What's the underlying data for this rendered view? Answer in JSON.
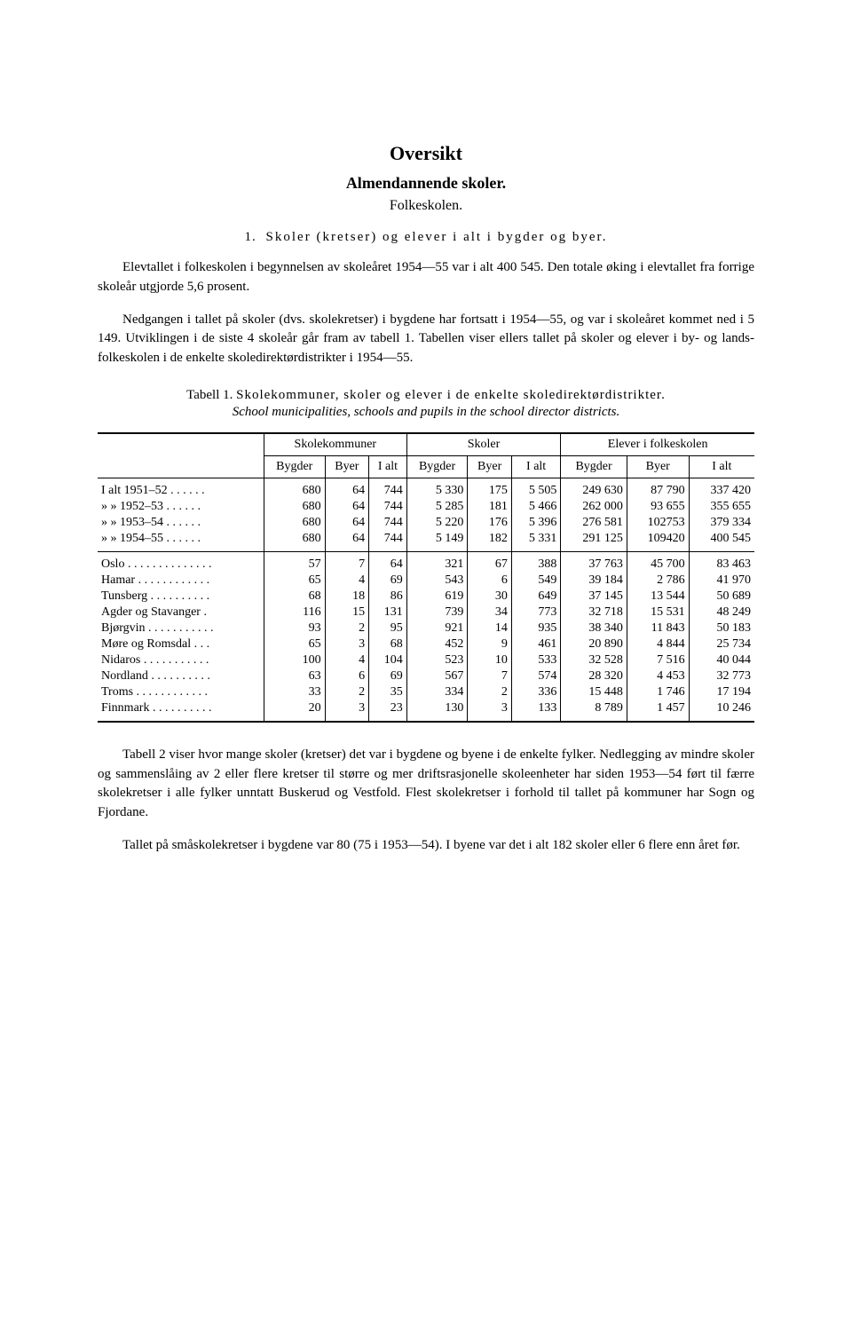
{
  "title": "Oversikt",
  "subtitle": "Almendannende skoler.",
  "subsubtitle": "Folkeskolen.",
  "section": {
    "number": "1.",
    "head": "Skoler (kretser) og elever i alt i bygder og byer."
  },
  "para1": "Elevtallet i folkeskolen i begynnelsen av skoleåret 1954—55 var i alt 400 545. Den totale øking i elevtallet fra forrige skoleår utgjorde 5,6 prosent.",
  "para2": "Nedgangen i tallet på skoler (dvs. skolekretser) i bygdene har fortsatt i 1954—55, og var i skoleåret kommet ned i 5 149. Utviklingen i de siste 4 skoleår går fram av tabell 1. Tabellen viser ellers tallet på skoler og elever i by- og lands-folkeskolen i de enkelte skoledirektørdistrikter i 1954—55.",
  "tabell": {
    "label_prefix": "Tabell 1.",
    "label_main": "Skolekommuner, skoler og elever i de enkelte skoledirektørdistrikter.",
    "label_sub": "School municipalities, schools and pupils in the school director districts."
  },
  "headers": {
    "group1": "Skolekommuner",
    "group2": "Skoler",
    "group3": "Elever i folkeskolen",
    "bygder": "Bygder",
    "byer": "Byer",
    "ialt": "I alt"
  },
  "rows_top": [
    {
      "label": "I alt 1951–52  . . . . . .",
      "v": [
        "680",
        "64",
        "744",
        "5 330",
        "175",
        "5 505",
        "249 630",
        "87 790",
        "337 420"
      ]
    },
    {
      "label": "»    »   1952–53  . . . . . .",
      "v": [
        "680",
        "64",
        "744",
        "5 285",
        "181",
        "5 466",
        "262 000",
        "93 655",
        "355 655"
      ]
    },
    {
      "label": "»    »   1953–54  . . . . . .",
      "v": [
        "680",
        "64",
        "744",
        "5 220",
        "176",
        "5 396",
        "276 581",
        "102753",
        "379 334"
      ]
    },
    {
      "label": "»    »   1954–55  . . . . . .",
      "v": [
        "680",
        "64",
        "744",
        "5 149",
        "182",
        "5 331",
        "291 125",
        "109420",
        "400 545"
      ]
    }
  ],
  "rows_bottom": [
    {
      "label": "Oslo . . . . . . . . . . . . . .",
      "v": [
        "57",
        "7",
        "64",
        "321",
        "67",
        "388",
        "37 763",
        "45 700",
        "83 463"
      ]
    },
    {
      "label": "Hamar  . . . . . . . . . . . .",
      "v": [
        "65",
        "4",
        "69",
        "543",
        "6",
        "549",
        "39 184",
        "2 786",
        "41 970"
      ]
    },
    {
      "label": "Tunsberg  . . . . . . . . . .",
      "v": [
        "68",
        "18",
        "86",
        "619",
        "30",
        "649",
        "37 145",
        "13 544",
        "50 689"
      ]
    },
    {
      "label": "Agder og Stavanger .",
      "v": [
        "116",
        "15",
        "131",
        "739",
        "34",
        "773",
        "32 718",
        "15 531",
        "48 249"
      ]
    },
    {
      "label": "Bjørgvin . . . . . . . . . . .",
      "v": [
        "93",
        "2",
        "95",
        "921",
        "14",
        "935",
        "38 340",
        "11 843",
        "50 183"
      ]
    },
    {
      "label": "Møre og Romsdal . . .",
      "v": [
        "65",
        "3",
        "68",
        "452",
        "9",
        "461",
        "20 890",
        "4 844",
        "25 734"
      ]
    },
    {
      "label": "Nidaros . . . . . . . . . . .",
      "v": [
        "100",
        "4",
        "104",
        "523",
        "10",
        "533",
        "32 528",
        "7 516",
        "40 044"
      ]
    },
    {
      "label": "Nordland . . . . . . . . . .",
      "v": [
        "63",
        "6",
        "69",
        "567",
        "7",
        "574",
        "28 320",
        "4 453",
        "32 773"
      ]
    },
    {
      "label": "Troms . . . . . . . . . . . .",
      "v": [
        "33",
        "2",
        "35",
        "334",
        "2",
        "336",
        "15 448",
        "1 746",
        "17 194"
      ]
    },
    {
      "label": "Finnmark . . . . . . . . . .",
      "v": [
        "20",
        "3",
        "23",
        "130",
        "3",
        "133",
        "8 789",
        "1 457",
        "10 246"
      ]
    }
  ],
  "para3": "Tabell 2 viser hvor mange skoler (kretser) det var i bygdene og byene i de enkelte fylker. Nedlegging av mindre skoler og sammenslåing av 2 eller flere kretser til større og mer driftsrasjonelle skoleenheter har siden 1953—54 ført til færre skolekretser i alle fylker unntatt Buskerud og Vestfold. Flest skolekretser i forhold til tallet på kommuner har Sogn og Fjordane.",
  "para4": "Tallet på småskolekretser i bygdene var 80 (75 i 1953—54). I byene var det i alt 182 skoler eller 6 flere enn året før."
}
